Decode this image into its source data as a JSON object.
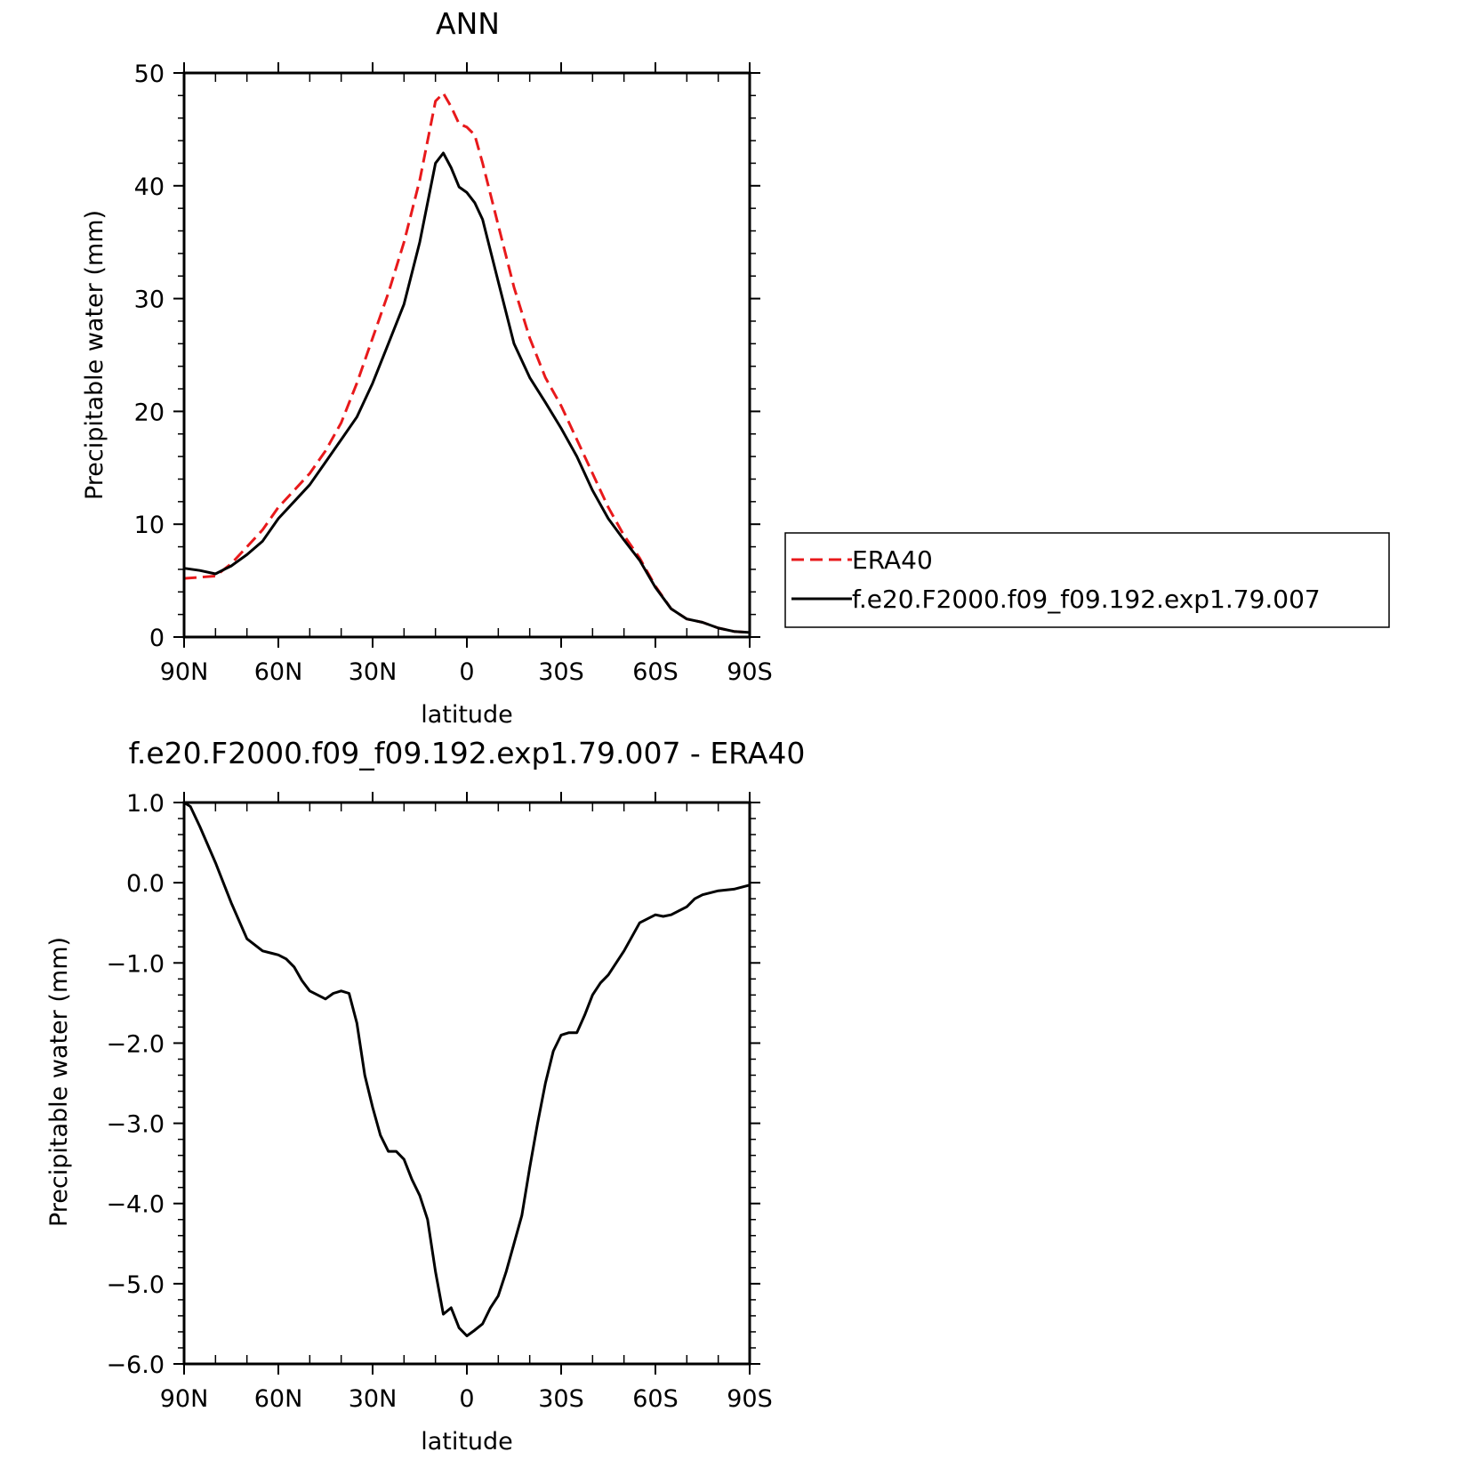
{
  "chart_data": [
    {
      "type": "line",
      "title": "ANN",
      "xlabel": "latitude",
      "ylabel": "Precipitable water (mm)",
      "xlim": [
        90,
        -90
      ],
      "ylim": [
        0,
        50
      ],
      "x_tick_values": [
        90,
        60,
        30,
        0,
        -30,
        -60,
        -90
      ],
      "x_tick_labels": [
        "90N",
        "60N",
        "30N",
        "0",
        "30S",
        "60S",
        "90S"
      ],
      "y_tick_values": [
        0,
        10,
        20,
        30,
        40,
        50
      ],
      "y_tick_labels": [
        "0",
        "10",
        "20",
        "30",
        "40",
        "50"
      ],
      "grid": false,
      "legend_position": "right",
      "series": [
        {
          "name": "ERA40",
          "color": "#e8191b",
          "dash": "dashed",
          "x": [
            90,
            85,
            80,
            75,
            70,
            65,
            60,
            55,
            50,
            45,
            40,
            35,
            30,
            25,
            20,
            15,
            10,
            7.5,
            5,
            2.5,
            0,
            -2.5,
            -5,
            -10,
            -15,
            -20,
            -25,
            -30,
            -35,
            -40,
            -45,
            -50,
            -55,
            -60,
            -65,
            -70,
            -75,
            -80,
            -85,
            -90
          ],
          "values": [
            5.2,
            5.3,
            5.4,
            6.5,
            8.0,
            9.5,
            11.5,
            13.0,
            14.5,
            16.5,
            19.0,
            22.5,
            26.5,
            30.5,
            35.0,
            40.5,
            47.5,
            48.2,
            47.0,
            45.5,
            45.2,
            44.5,
            42.0,
            36.5,
            31.0,
            26.5,
            23.0,
            20.5,
            17.5,
            14.5,
            11.5,
            9.0,
            7.0,
            4.5,
            2.5,
            1.6,
            1.3,
            0.8,
            0.5,
            0.4
          ]
        },
        {
          "name": "f.e20.F2000.f09_f09.192.exp1.79.007",
          "color": "#000000",
          "dash": "solid",
          "x": [
            90,
            85,
            80,
            75,
            70,
            65,
            60,
            55,
            50,
            45,
            40,
            35,
            30,
            25,
            20,
            15,
            10,
            7.5,
            5,
            2.5,
            0,
            -2.5,
            -5,
            -10,
            -15,
            -20,
            -25,
            -30,
            -35,
            -40,
            -45,
            -50,
            -55,
            -60,
            -65,
            -70,
            -75,
            -80,
            -85,
            -90
          ],
          "values": [
            6.1,
            5.9,
            5.6,
            6.3,
            7.3,
            8.5,
            10.5,
            12.0,
            13.5,
            15.5,
            17.5,
            19.5,
            22.5,
            26.0,
            29.5,
            35.0,
            42.0,
            42.9,
            41.6,
            39.9,
            39.4,
            38.5,
            37.0,
            31.5,
            26.0,
            23.0,
            20.8,
            18.5,
            16.0,
            13.0,
            10.5,
            8.6,
            6.8,
            4.4,
            2.5,
            1.6,
            1.3,
            0.8,
            0.5,
            0.4
          ]
        }
      ]
    },
    {
      "type": "line",
      "title": "f.e20.F2000.f09_f09.192.exp1.79.007 - ERA40",
      "xlabel": "latitude",
      "ylabel": "Precipitable water (mm)",
      "xlim": [
        90,
        -90
      ],
      "ylim": [
        -6.0,
        1.0
      ],
      "x_tick_values": [
        90,
        60,
        30,
        0,
        -30,
        -60,
        -90
      ],
      "x_tick_labels": [
        "90N",
        "60N",
        "30N",
        "0",
        "30S",
        "60S",
        "90S"
      ],
      "y_tick_values": [
        1.0,
        0.0,
        -1.0,
        -2.0,
        -3.0,
        -4.0,
        -5.0,
        -6.0
      ],
      "y_tick_labels": [
        "1.0",
        "0.0",
        "−1.0",
        "−2.0",
        "−3.0",
        "−4.0",
        "−5.0",
        "−6.0"
      ],
      "grid": false,
      "series": [
        {
          "color": "#000000",
          "dash": "solid",
          "x": [
            90,
            88,
            85,
            80,
            75,
            70,
            65,
            62,
            60,
            57.5,
            55,
            52.5,
            50,
            45,
            42.5,
            40,
            37.5,
            35,
            32.5,
            30,
            27.5,
            25,
            22.5,
            20,
            17.5,
            15,
            12.5,
            10,
            7.5,
            5,
            2.5,
            0,
            -2.5,
            -5,
            -7.5,
            -10,
            -12.5,
            -15,
            -17.5,
            -20,
            -22.5,
            -25,
            -27.5,
            -30,
            -32.5,
            -35,
            -37.5,
            -40,
            -42.5,
            -45,
            -50,
            -55,
            -60,
            -62.5,
            -65,
            -70,
            -72.5,
            -75,
            -80,
            -85,
            -90
          ],
          "values": [
            1.0,
            0.95,
            0.7,
            0.25,
            -0.25,
            -0.7,
            -0.85,
            -0.88,
            -0.9,
            -0.95,
            -1.05,
            -1.22,
            -1.35,
            -1.45,
            -1.38,
            -1.35,
            -1.38,
            -1.75,
            -2.4,
            -2.8,
            -3.15,
            -3.35,
            -3.35,
            -3.45,
            -3.7,
            -3.9,
            -4.2,
            -4.85,
            -5.38,
            -5.3,
            -5.55,
            -5.65,
            -5.58,
            -5.5,
            -5.3,
            -5.15,
            -4.85,
            -4.5,
            -4.15,
            -3.55,
            -3.0,
            -2.5,
            -2.1,
            -1.9,
            -1.87,
            -1.87,
            -1.65,
            -1.4,
            -1.25,
            -1.15,
            -0.85,
            -0.5,
            -0.4,
            -0.42,
            -0.4,
            -0.3,
            -0.2,
            -0.15,
            -0.1,
            -0.08,
            -0.03
          ]
        }
      ]
    }
  ]
}
